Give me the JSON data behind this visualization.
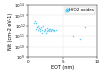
{
  "title": "",
  "xlabel": "EOT (nm)",
  "ylabel": "Nit (cm-2 eV-1)",
  "legend_label": "HfO2 oxides",
  "point_color": "#66ccee",
  "background_color": "#ffffff",
  "xlim": [
    0,
    10
  ],
  "ylim_log": [
    1000000000.0,
    100000000000000.0
  ],
  "x_ticks": [
    0,
    5,
    10
  ],
  "scatter_x": [
    0.8,
    1.0,
    1.1,
    1.2,
    1.3,
    1.4,
    1.5,
    1.6,
    1.7,
    1.8,
    1.9,
    2.0,
    2.1,
    2.2,
    2.3,
    2.4,
    2.5,
    2.6,
    2.7,
    2.8,
    2.9,
    3.0,
    3.1,
    3.2,
    3.3,
    3.4,
    3.5,
    3.6,
    3.7,
    3.8,
    4.0,
    6.5,
    7.5,
    8.2
  ],
  "scatter_y": [
    2000000000000.0,
    3000000000000.0,
    500000000000.0,
    2000000000000.0,
    800000000000.0,
    400000000000.0,
    1000000000000.0,
    600000000000.0,
    300000000000.0,
    500000000000.0,
    700000000000.0,
    400000000000.0,
    200000000000.0,
    900000000000.0,
    300000000000.0,
    500000000000.0,
    400000000000.0,
    200000000000.0,
    600000000000.0,
    300000000000.0,
    400000000000.0,
    500000000000.0,
    300000000000.0,
    500000000000.0,
    400000000000.0,
    300000000000.0,
    500000000000.0,
    400000000000.0,
    300000000000.0,
    400000000000.0,
    400000000000.0,
    100000000000.0,
    50000000000.0,
    800000000000.0
  ],
  "grid_color": "#dddddd",
  "label_fontsize": 3.5,
  "tick_fontsize": 3.0,
  "legend_fontsize": 3.0,
  "marker_size": 1.2
}
